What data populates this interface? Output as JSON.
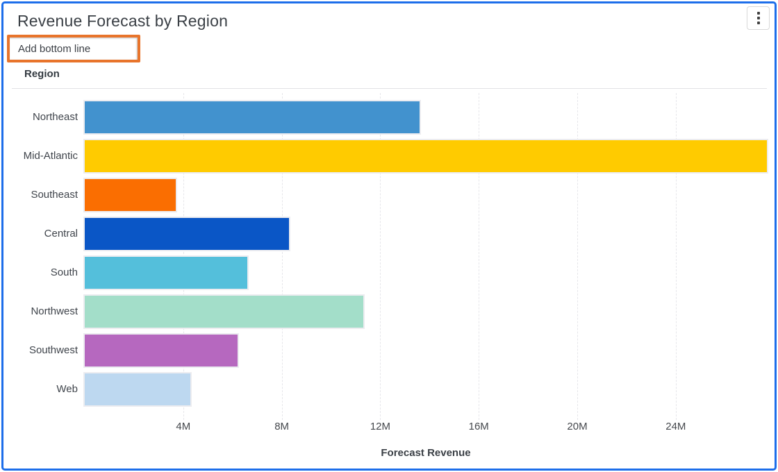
{
  "header": {
    "title": "Revenue Forecast by Region",
    "add_bottom_line_label": "Add bottom line"
  },
  "icons": {
    "kebab_menu": "vertical-ellipsis"
  },
  "colors": {
    "card_border": "#1D6EEA",
    "annotation_highlight": "#E8742B",
    "divider": "#E2E2E5",
    "gridline": "#E6E6EA",
    "title_text": "#3B4046",
    "label_text": "#3F444B"
  },
  "chart_data": {
    "type": "bar",
    "orientation": "horizontal",
    "title": "Revenue Forecast by Region",
    "xlabel": "Forecast Revenue",
    "ylabel": "Region",
    "categories": [
      "Northeast",
      "Mid-Atlantic",
      "Southeast",
      "Central",
      "South",
      "Northwest",
      "Southwest",
      "Web"
    ],
    "values_millions": [
      13.6,
      27.7,
      3.7,
      8.3,
      6.6,
      11.3,
      6.2,
      4.3
    ],
    "bar_colors": [
      "#4292CE",
      "#FFCB00",
      "#FA6E01",
      "#0A56C6",
      "#54BFDB",
      "#A3DEC9",
      "#B668BF",
      "#BDD8F0"
    ],
    "x_tick_labels": [
      "4M",
      "8M",
      "12M",
      "16M",
      "20M",
      "24M"
    ],
    "x_tick_values_millions": [
      4,
      8,
      12,
      16,
      20,
      24
    ],
    "xlim_millions": [
      0,
      27.7
    ],
    "grid": "vertical-dashed",
    "legend": "none",
    "unit": "M"
  }
}
